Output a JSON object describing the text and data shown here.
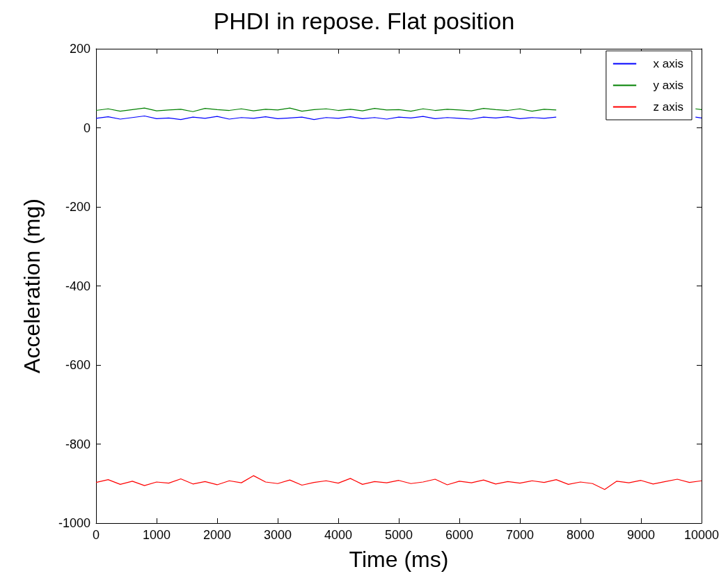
{
  "chart_data": {
    "type": "line",
    "title": "PHDI in repose. Flat position",
    "xlabel": "Time (ms)",
    "ylabel": "Acceleration (mg)",
    "x": [
      0,
      200,
      400,
      600,
      800,
      1000,
      1200,
      1400,
      1600,
      1800,
      2000,
      2200,
      2400,
      2600,
      2800,
      3000,
      3200,
      3400,
      3600,
      3800,
      4000,
      4200,
      4400,
      4600,
      4800,
      5000,
      5200,
      5400,
      5600,
      5800,
      6000,
      6200,
      6400,
      6600,
      6800,
      7000,
      7200,
      7400,
      7600,
      7800,
      8000,
      8200,
      8400,
      8600,
      8800,
      9000,
      9200,
      9400,
      9600,
      9800,
      10000
    ],
    "series": [
      {
        "name": "x axis",
        "color": "#0000ff",
        "x": [
          0,
          200,
          400,
          600,
          800,
          1000,
          1200,
          1400,
          1600,
          1800,
          2000,
          2200,
          2400,
          2600,
          2800,
          3000,
          3200,
          3400,
          3600,
          3800,
          4000,
          4200,
          4400,
          4600,
          4800,
          5000,
          5200,
          5400,
          5600,
          5800,
          6000,
          6200,
          6400,
          6600,
          6800,
          7000,
          7200,
          7400,
          7600,
          7800,
          9900,
          10000
        ],
        "values": [
          24,
          28,
          22,
          26,
          30,
          23,
          25,
          21,
          27,
          24,
          29,
          22,
          26,
          24,
          28,
          23,
          25,
          27,
          21,
          26,
          24,
          28,
          23,
          26,
          22,
          27,
          25,
          29,
          23,
          26,
          24,
          22,
          27,
          25,
          28,
          23,
          26,
          24,
          27,
          null,
          27,
          25
        ]
      },
      {
        "name": "y axis",
        "color": "#008000",
        "x": [
          0,
          200,
          400,
          600,
          800,
          1000,
          1200,
          1400,
          1600,
          1800,
          2000,
          2200,
          2400,
          2600,
          2800,
          3000,
          3200,
          3400,
          3600,
          3800,
          4000,
          4200,
          4400,
          4600,
          4800,
          5000,
          5200,
          5400,
          5600,
          5800,
          6000,
          6200,
          6400,
          6600,
          6800,
          7000,
          7200,
          7400,
          7600,
          7800,
          9900,
          10000
        ],
        "values": [
          44,
          48,
          42,
          46,
          50,
          43,
          45,
          47,
          41,
          49,
          46,
          44,
          48,
          43,
          47,
          45,
          50,
          42,
          46,
          48,
          44,
          47,
          43,
          49,
          45,
          46,
          42,
          48,
          44,
          47,
          45,
          43,
          49,
          46,
          44,
          48,
          42,
          47,
          45,
          null,
          48,
          46
        ]
      },
      {
        "name": "z axis",
        "color": "#ff0000",
        "values": [
          -897,
          -890,
          -902,
          -894,
          -905,
          -896,
          -899,
          -888,
          -901,
          -895,
          -903,
          -893,
          -898,
          -880,
          -896,
          -900,
          -891,
          -904,
          -897,
          -893,
          -899,
          -887,
          -902,
          -895,
          -898,
          -892,
          -900,
          -896,
          -889,
          -903,
          -894,
          -898,
          -891,
          -901,
          -895,
          -899,
          -893,
          -897,
          -890,
          -902,
          -896,
          -900,
          -915,
          -894,
          -898,
          -892,
          -901,
          -895,
          -889,
          -897,
          -893
        ]
      }
    ],
    "xlim": [
      0,
      10000
    ],
    "xticks": [
      0,
      1000,
      2000,
      3000,
      4000,
      5000,
      6000,
      7000,
      8000,
      9000,
      10000
    ],
    "ylim": [
      -1000,
      200
    ],
    "yticks": [
      -1000,
      -800,
      -600,
      -400,
      -200,
      0,
      200
    ],
    "grid": false,
    "legend": "top right",
    "marker": "none",
    "line_style": "solid"
  }
}
